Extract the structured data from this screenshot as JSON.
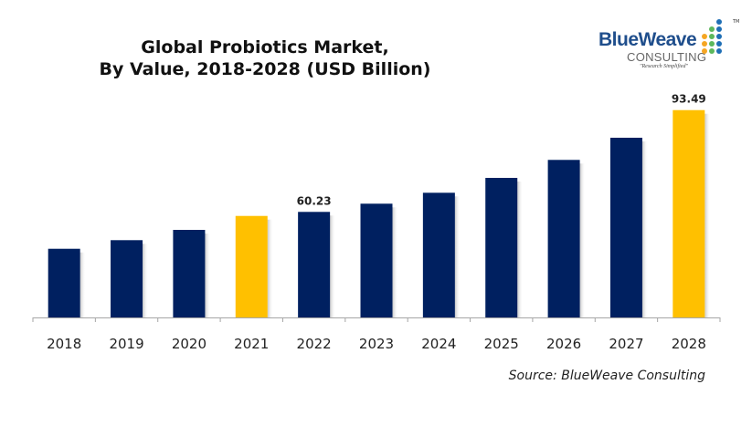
{
  "title_line1": "Global Probiotics Market,",
  "title_line2": "By Value, 2018-2028 (USD Billion)",
  "logo": {
    "name": "BlueWeave",
    "sub": "CONSULTING",
    "tagline": "\"Research Simplified\"",
    "trademark": "TM",
    "dot_colors": {
      "orange": "#f5a623",
      "green": "#5cb85c",
      "blue": "#1f6fb5"
    }
  },
  "source": "Source: BlueWeave Consulting",
  "colors": {
    "primary": "#002060",
    "highlight": "#ffc000",
    "axis": "#a6a6a6"
  },
  "chart_data": {
    "type": "bar",
    "title": "Global Probiotics Market, By Value, 2018-2028 (USD Billion)",
    "xlabel": "",
    "ylabel": "",
    "categories": [
      "2018",
      "2019",
      "2020",
      "2021",
      "2022",
      "2023",
      "2024",
      "2025",
      "2026",
      "2027",
      "2028"
    ],
    "values": [
      48.18,
      50.99,
      54.35,
      58.91,
      60.23,
      62.91,
      66.48,
      71.34,
      77.22,
      84.46,
      93.49
    ],
    "highlighted": [
      "2021",
      "2028"
    ],
    "data_labels": {
      "2022": "60.23",
      "2028": "93.49"
    },
    "ylim": [
      25.74,
      93.49
    ],
    "grid": false,
    "legend": "none"
  }
}
